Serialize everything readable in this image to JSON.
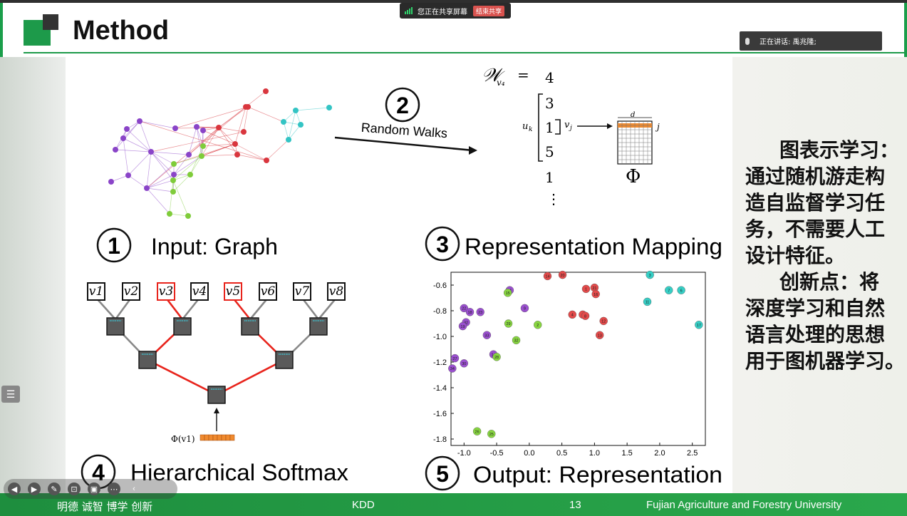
{
  "app": {
    "share_status": "您正在共享屏幕",
    "share_stop": "结束共享",
    "speaker_label": "正在讲话: 禹兆隆;"
  },
  "slide": {
    "title": "Method",
    "side_text": [
      "图表示学习：",
      "通过随机游走构",
      "造自监督学习任",
      "务，不需要人工",
      "设计特征。",
      "创新点：将",
      "深度学习和自然",
      "语言处理的思想",
      "用于图机器学习。"
    ],
    "footer": {
      "motto": "明德 诚智 博学 创新",
      "course": "KDD",
      "page": "13",
      "university": "Fujian Agriculture and Forestry University"
    }
  },
  "figure": {
    "step1": {
      "num": "1",
      "label": "Input: Graph"
    },
    "step2": {
      "num": "2",
      "label": "Random Walks"
    },
    "step3": {
      "num": "3",
      "label": "Representation Mapping"
    },
    "step4": {
      "num": "4",
      "label": "Hierarchical Softmax"
    },
    "step5": {
      "num": "5",
      "label": "Output: Representation"
    },
    "walk": {
      "header": "𝒲",
      "sub": "v₄",
      "eq": "=",
      "values": [
        "4",
        "3",
        "1",
        "5",
        "1",
        "⋮"
      ],
      "uk": "u",
      "uk_sub": "k",
      "vj": "v",
      "vj_sub": "j",
      "d": "d",
      "j": "j",
      "phi": "Φ"
    },
    "tree": {
      "leaves": [
        "v1",
        "v2",
        "v3",
        "v4",
        "v5",
        "v6",
        "v7",
        "v8"
      ],
      "highlighted": [
        "v3",
        "v5"
      ],
      "phi_label": "Φ(v1)"
    }
  },
  "chart_data": {
    "type": "scatter",
    "xlim": [
      -1.2,
      2.7
    ],
    "ylim": [
      -1.85,
      -0.5
    ],
    "xticks": [
      "-1.0",
      "-0.5",
      "0.0",
      "0.5",
      "1.0",
      "1.5",
      "2.0",
      "2.5"
    ],
    "yticks": [
      "-0.6",
      "-0.8",
      "-1.0",
      "-1.2",
      "-1.4",
      "-1.6",
      "-1.8"
    ],
    "colors": {
      "red": "#e34a4a",
      "purple": "#9a4fcf",
      "green": "#88d641",
      "cyan": "#36cfc6"
    },
    "points": [
      {
        "id": "14",
        "x": 0.28,
        "y": -0.53,
        "c": "red"
      },
      {
        "id": "20",
        "x": 0.51,
        "y": -0.52,
        "c": "red"
      },
      {
        "id": "1",
        "x": 0.87,
        "y": -0.63,
        "c": "red"
      },
      {
        "id": "21",
        "x": 1.0,
        "y": -0.62,
        "c": "red"
      },
      {
        "id": "16",
        "x": 1.02,
        "y": -0.67,
        "c": "red"
      },
      {
        "id": "4",
        "x": 0.66,
        "y": -0.83,
        "c": "red"
      },
      {
        "id": "2",
        "x": 0.82,
        "y": -0.83,
        "c": "red"
      },
      {
        "id": "8",
        "x": 0.86,
        "y": -0.84,
        "c": "red"
      },
      {
        "id": "12",
        "x": 1.14,
        "y": -0.88,
        "c": "red"
      },
      {
        "id": "13",
        "x": 1.08,
        "y": -0.99,
        "c": "red"
      },
      {
        "id": "3",
        "x": 1.85,
        "y": -0.52,
        "c": "cyan"
      },
      {
        "id": "7",
        "x": 2.14,
        "y": -0.64,
        "c": "cyan"
      },
      {
        "id": "6",
        "x": 2.33,
        "y": -0.64,
        "c": "cyan"
      },
      {
        "id": "11",
        "x": 1.81,
        "y": -0.73,
        "c": "cyan"
      },
      {
        "id": "17",
        "x": 2.6,
        "y": -0.91,
        "c": "cyan"
      },
      {
        "id": "31",
        "x": -0.3,
        "y": -0.64,
        "c": "purple"
      },
      {
        "id": "15",
        "x": -0.33,
        "y": -0.66,
        "c": "green"
      },
      {
        "id": "9",
        "x": -0.07,
        "y": -0.78,
        "c": "purple"
      },
      {
        "id": "22",
        "x": -1.0,
        "y": -0.78,
        "c": "purple"
      },
      {
        "id": "18",
        "x": -0.91,
        "y": -0.81,
        "c": "purple"
      },
      {
        "id": "23",
        "x": -0.75,
        "y": -0.81,
        "c": "purple"
      },
      {
        "id": "32",
        "x": -0.97,
        "y": -0.89,
        "c": "purple"
      },
      {
        "id": "19",
        "x": -1.02,
        "y": -0.92,
        "c": "purple"
      },
      {
        "id": "29",
        "x": -0.32,
        "y": -0.9,
        "c": "green"
      },
      {
        "id": "2b",
        "label": "2",
        "x": 0.13,
        "y": -0.91,
        "c": "green"
      },
      {
        "id": "33",
        "x": -0.65,
        "y": -0.99,
        "c": "purple"
      },
      {
        "id": "32b",
        "label": "32",
        "x": -0.2,
        "y": -1.03,
        "c": "green"
      },
      {
        "id": "27",
        "x": -1.14,
        "y": -1.17,
        "c": "purple"
      },
      {
        "id": "30",
        "x": -1.0,
        "y": -1.21,
        "c": "purple"
      },
      {
        "id": "34",
        "x": -1.18,
        "y": -1.25,
        "c": "purple"
      },
      {
        "id": "14b",
        "label": "14",
        "x": -0.55,
        "y": -1.14,
        "c": "purple"
      },
      {
        "id": "28",
        "x": -0.5,
        "y": -1.16,
        "c": "green"
      },
      {
        "id": "26",
        "x": -0.8,
        "y": -1.74,
        "c": "green"
      },
      {
        "id": "25",
        "x": -0.58,
        "y": -1.76,
        "c": "green"
      }
    ]
  }
}
